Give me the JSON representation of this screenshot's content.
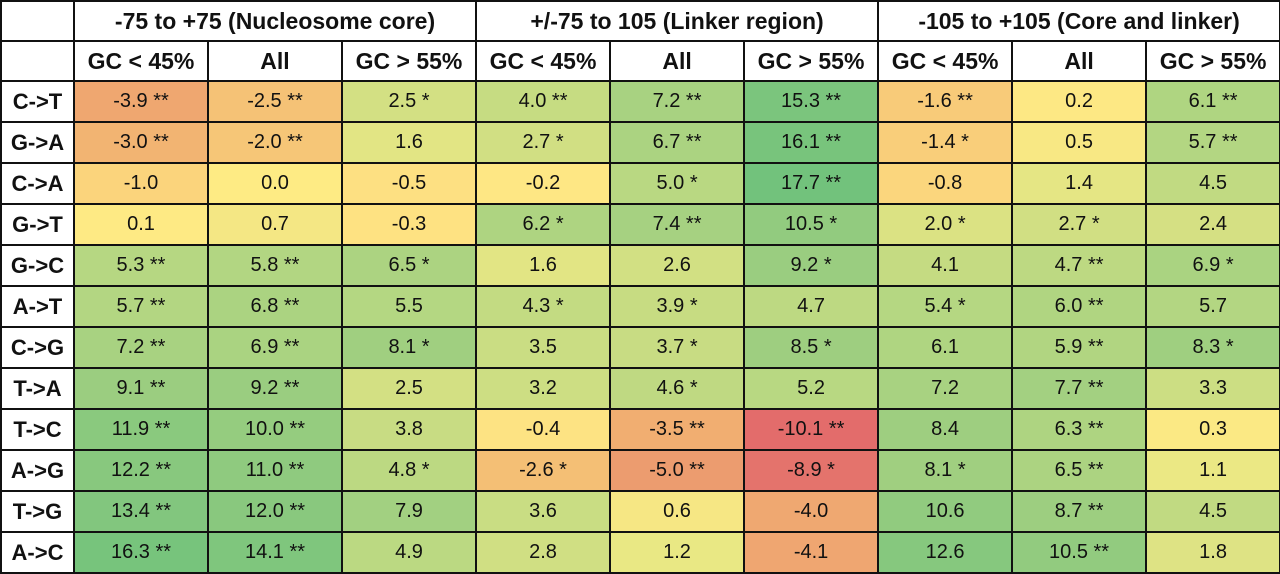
{
  "table": {
    "groups": [
      {
        "title": "-75 to +75 (Nucleosome core)"
      },
      {
        "title": "+/-75 to 105 (Linker region)"
      },
      {
        "title": "-105 to +105 (Core and linker)"
      }
    ],
    "subheaders": [
      "GC < 45%",
      "All",
      "GC > 55%",
      "GC < 45%",
      "All",
      "GC > 55%",
      "GC < 45%",
      "All",
      "GC > 55%"
    ],
    "rows": [
      {
        "label": "C->T",
        "cells": [
          {
            "text": "-3.9 **",
            "color": "#efa770"
          },
          {
            "text": "-2.5 **",
            "color": "#f5c276"
          },
          {
            "text": "2.5 *",
            "color": "#d3e083"
          },
          {
            "text": "4.0 **",
            "color": "#c6dc82"
          },
          {
            "text": "7.2 **",
            "color": "#a8d281"
          },
          {
            "text": "15.3 **",
            "color": "#7bc57d"
          },
          {
            "text": "-1.6 **",
            "color": "#f8cb79"
          },
          {
            "text": "0.2",
            "color": "#fde884"
          },
          {
            "text": "6.1 **",
            "color": "#afd581"
          }
        ]
      },
      {
        "label": "G->A",
        "cells": [
          {
            "text": "-3.0 **",
            "color": "#f2b472"
          },
          {
            "text": "-2.0 **",
            "color": "#f6c677"
          },
          {
            "text": "1.6",
            "color": "#e2e584"
          },
          {
            "text": "2.7 *",
            "color": "#d1df83"
          },
          {
            "text": "6.7 **",
            "color": "#abd381"
          },
          {
            "text": "16.1 **",
            "color": "#78c47c"
          },
          {
            "text": "-1.4 *",
            "color": "#f9ce7a"
          },
          {
            "text": "0.5",
            "color": "#f8e884"
          },
          {
            "text": "5.7 **",
            "color": "#b3d682"
          }
        ]
      },
      {
        "label": "C->A",
        "cells": [
          {
            "text": "-1.0",
            "color": "#fbd47c"
          },
          {
            "text": "0.0",
            "color": "#feeb84"
          },
          {
            "text": "-0.5",
            "color": "#fde082"
          },
          {
            "text": "-0.2",
            "color": "#fee784"
          },
          {
            "text": "5.0 *",
            "color": "#b9d882"
          },
          {
            "text": "17.7 **",
            "color": "#72c27c"
          },
          {
            "text": "-0.8",
            "color": "#fbd67d"
          },
          {
            "text": "1.4",
            "color": "#e5e684"
          },
          {
            "text": "4.5",
            "color": "#c1da82"
          }
        ]
      },
      {
        "label": "G->T",
        "cells": [
          {
            "text": "0.1",
            "color": "#feea84"
          },
          {
            "text": "0.7",
            "color": "#f4e784"
          },
          {
            "text": "-0.3",
            "color": "#fee282"
          },
          {
            "text": "6.2 *",
            "color": "#aed481"
          },
          {
            "text": "7.4 **",
            "color": "#a6d181"
          },
          {
            "text": "10.5 *",
            "color": "#92cb7f"
          },
          {
            "text": "2.0 *",
            "color": "#dbe283"
          },
          {
            "text": "2.7 *",
            "color": "#d1df83"
          },
          {
            "text": "2.4",
            "color": "#d5e083"
          }
        ]
      },
      {
        "label": "G->C",
        "cells": [
          {
            "text": "5.3 **",
            "color": "#b6d782"
          },
          {
            "text": "5.8 **",
            "color": "#b2d682"
          },
          {
            "text": "6.5 *",
            "color": "#acd381"
          },
          {
            "text": "1.6",
            "color": "#e2e584"
          },
          {
            "text": "2.6",
            "color": "#d2e083"
          },
          {
            "text": "9.2 *",
            "color": "#9acd80"
          },
          {
            "text": "4.1",
            "color": "#c5db82"
          },
          {
            "text": "4.7 **",
            "color": "#bdd982"
          },
          {
            "text": "6.9 *",
            "color": "#aad381"
          }
        ]
      },
      {
        "label": "A->T",
        "cells": [
          {
            "text": "5.7 **",
            "color": "#b3d682"
          },
          {
            "text": "6.8 **",
            "color": "#abd381"
          },
          {
            "text": "5.5",
            "color": "#b4d782"
          },
          {
            "text": "4.3 *",
            "color": "#c3db82"
          },
          {
            "text": "3.9 *",
            "color": "#c7dc82"
          },
          {
            "text": "4.7",
            "color": "#bdd982"
          },
          {
            "text": "5.4 *",
            "color": "#b5d782"
          },
          {
            "text": "6.0 **",
            "color": "#b0d581"
          },
          {
            "text": "5.7",
            "color": "#b3d682"
          }
        ]
      },
      {
        "label": "C->G",
        "cells": [
          {
            "text": "7.2 **",
            "color": "#a8d281"
          },
          {
            "text": "6.9 **",
            "color": "#aad381"
          },
          {
            "text": "8.1 *",
            "color": "#a0cf80"
          },
          {
            "text": "3.5",
            "color": "#cadd83"
          },
          {
            "text": "3.7 *",
            "color": "#c8dc83"
          },
          {
            "text": "8.5 *",
            "color": "#9ece80"
          },
          {
            "text": "6.1",
            "color": "#afd581"
          },
          {
            "text": "5.9 **",
            "color": "#b1d581"
          },
          {
            "text": "8.3 *",
            "color": "#9fcf80"
          }
        ]
      },
      {
        "label": "T->A",
        "cells": [
          {
            "text": "9.1 **",
            "color": "#9bcd80"
          },
          {
            "text": "9.2 **",
            "color": "#9acd80"
          },
          {
            "text": "2.5",
            "color": "#d3e083"
          },
          {
            "text": "3.2",
            "color": "#cdde83"
          },
          {
            "text": "4.6 *",
            "color": "#bfd982"
          },
          {
            "text": "5.2",
            "color": "#b8d882"
          },
          {
            "text": "7.2",
            "color": "#a8d281"
          },
          {
            "text": "7.7 **",
            "color": "#a3d081"
          },
          {
            "text": "3.3",
            "color": "#ccde83"
          }
        ]
      },
      {
        "label": "T->C",
        "cells": [
          {
            "text": "11.9 **",
            "color": "#8ac97e"
          },
          {
            "text": "10.0 **",
            "color": "#95cc7f"
          },
          {
            "text": "3.8",
            "color": "#c8dc83"
          },
          {
            "text": "-0.4",
            "color": "#fde383"
          },
          {
            "text": "-3.5 **",
            "color": "#f1ae71"
          },
          {
            "text": "-10.1 **",
            "color": "#e36c6b"
          },
          {
            "text": "8.4",
            "color": "#9ece80"
          },
          {
            "text": "6.3 **",
            "color": "#aed481"
          },
          {
            "text": "0.3",
            "color": "#fbe984"
          }
        ]
      },
      {
        "label": "A->G",
        "cells": [
          {
            "text": "12.2 **",
            "color": "#88c87e"
          },
          {
            "text": "11.0 **",
            "color": "#8fca7f"
          },
          {
            "text": "4.8 *",
            "color": "#bcd982"
          },
          {
            "text": "-2.6 *",
            "color": "#f4bf75"
          },
          {
            "text": "-5.0 **",
            "color": "#ec9c6f"
          },
          {
            "text": "-8.9 *",
            "color": "#e4736c"
          },
          {
            "text": "8.1 *",
            "color": "#a0cf80"
          },
          {
            "text": "6.5 **",
            "color": "#acd381"
          },
          {
            "text": "1.1",
            "color": "#ebe884"
          }
        ]
      },
      {
        "label": "T->G",
        "cells": [
          {
            "text": "13.4 **",
            "color": "#82c67e"
          },
          {
            "text": "12.0 **",
            "color": "#89c87e"
          },
          {
            "text": "7.9",
            "color": "#a2d081"
          },
          {
            "text": "3.6",
            "color": "#c9dd83"
          },
          {
            "text": "0.6",
            "color": "#f6e784"
          },
          {
            "text": "-4.0",
            "color": "#efa871"
          },
          {
            "text": "10.6",
            "color": "#91cb7f"
          },
          {
            "text": "8.7 **",
            "color": "#9dce80"
          },
          {
            "text": "4.5",
            "color": "#c1da82"
          }
        ]
      },
      {
        "label": "A->C",
        "cells": [
          {
            "text": "16.3 **",
            "color": "#77c47c"
          },
          {
            "text": "14.1 **",
            "color": "#7fc67d"
          },
          {
            "text": "4.9",
            "color": "#bbd982"
          },
          {
            "text": "2.8",
            "color": "#d0df83"
          },
          {
            "text": "1.2",
            "color": "#e9e884"
          },
          {
            "text": "-4.1",
            "color": "#efa671"
          },
          {
            "text": "12.6",
            "color": "#86c87e"
          },
          {
            "text": "10.5 **",
            "color": "#92cb7f"
          },
          {
            "text": "1.8",
            "color": "#dee384"
          }
        ]
      }
    ]
  }
}
